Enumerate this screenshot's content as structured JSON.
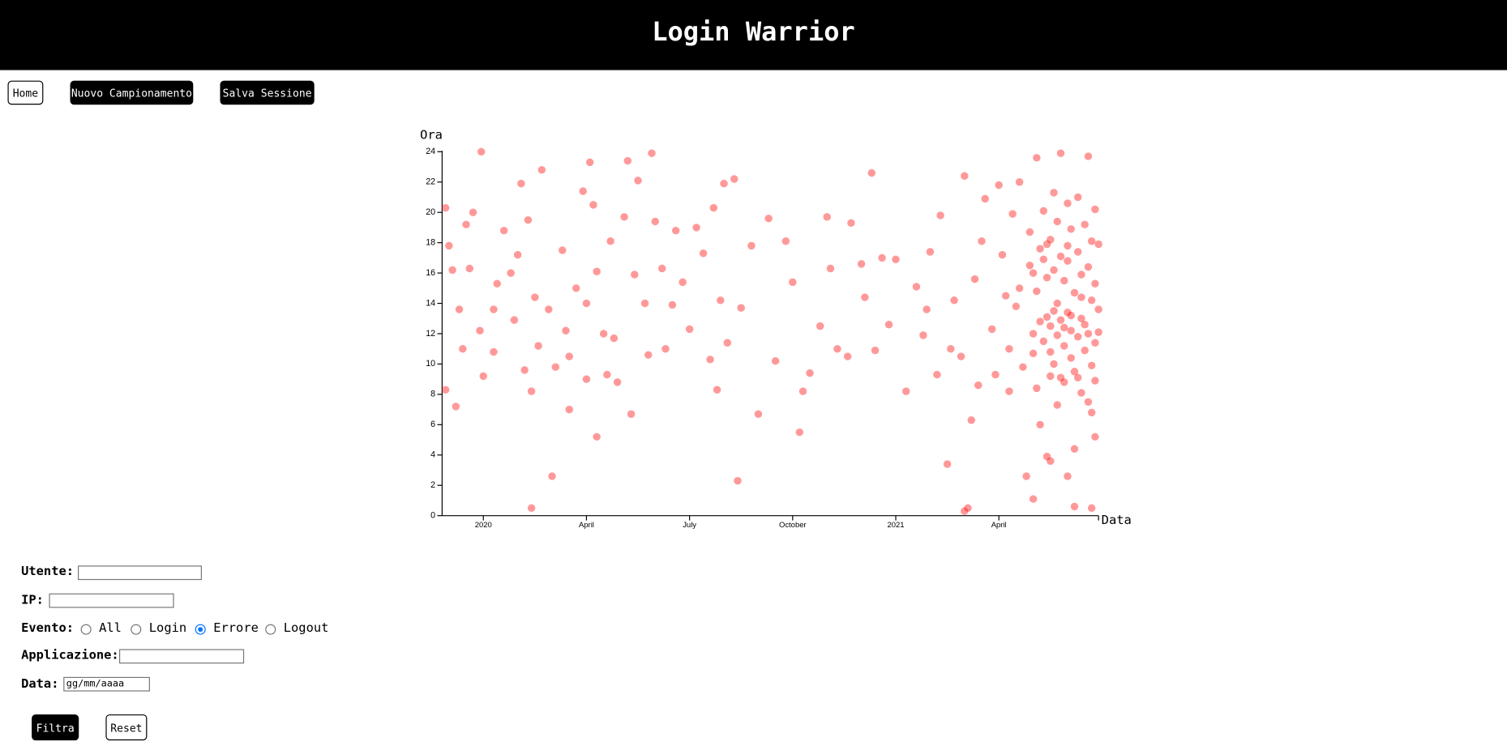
{
  "header": {
    "title": "Login Warrior"
  },
  "nav": {
    "buttons": [
      "Home",
      "Nuovo Campionamento",
      "Salva Sessione"
    ]
  },
  "chart_data": {
    "type": "scatter",
    "xlabel": "Data",
    "ylabel": "Ora",
    "color": "#ff0000",
    "xlim": [
      -1.2,
      17.9
    ],
    "ylim": [
      0,
      24
    ],
    "xticks": [
      {
        "value": 0,
        "label": "2020"
      },
      {
        "value": 3,
        "label": "April"
      },
      {
        "value": 6,
        "label": "July"
      },
      {
        "value": 9,
        "label": "October"
      },
      {
        "value": 12,
        "label": "2021"
      },
      {
        "value": 15,
        "label": "April"
      }
    ],
    "yticks": [
      0,
      2,
      4,
      6,
      8,
      10,
      12,
      14,
      16,
      18,
      20,
      22,
      24
    ],
    "x": [
      -1.1,
      -1.1,
      -1.0,
      -0.9,
      -0.8,
      -0.7,
      -0.6,
      -0.5,
      -0.4,
      -0.3,
      -0.1,
      0.0,
      0.3,
      -0.06,
      0.3,
      0.4,
      0.6,
      0.8,
      0.9,
      1.0,
      1.1,
      1.2,
      1.3,
      1.4,
      1.4,
      1.5,
      1.6,
      1.7,
      1.9,
      2.0,
      2.1,
      2.3,
      2.4,
      2.5,
      2.5,
      2.7,
      2.9,
      3.0,
      3.0,
      3.1,
      3.2,
      3.3,
      3.3,
      3.5,
      3.6,
      3.7,
      3.8,
      3.9,
      4.1,
      4.2,
      4.3,
      4.4,
      4.5,
      4.7,
      4.8,
      4.9,
      5.0,
      5.2,
      5.3,
      5.5,
      5.6,
      5.8,
      6.0,
      6.2,
      6.4,
      6.6,
      6.7,
      6.8,
      6.9,
      7.0,
      7.1,
      7.3,
      7.4,
      7.5,
      7.8,
      8.0,
      8.3,
      8.5,
      8.8,
      9.0,
      9.2,
      9.3,
      9.5,
      9.8,
      10.0,
      10.1,
      10.3,
      10.6,
      10.7,
      11.0,
      11.1,
      11.3,
      11.4,
      11.6,
      11.8,
      12.0,
      12.3,
      12.6,
      12.8,
      12.9,
      13.0,
      13.2,
      13.3,
      13.5,
      13.6,
      13.7,
      13.9,
      14.0,
      14.0,
      14.1,
      14.2,
      14.3,
      14.4,
      14.5,
      14.6,
      14.8,
      14.9,
      15.0,
      15.1,
      15.2,
      15.3,
      15.4,
      15.5,
      15.6,
      15.7,
      15.8,
      15.9,
      15.9,
      16.0,
      16.0,
      16.0,
      16.1,
      16.1,
      16.1,
      16.2,
      16.2,
      16.3,
      16.3,
      16.4,
      16.4,
      16.4,
      16.5,
      16.5,
      16.5,
      16.6,
      16.6,
      16.6,
      16.7,
      16.7,
      16.7,
      16.8,
      16.8,
      16.8,
      16.9,
      16.9,
      16.9,
      17.0,
      17.0,
      17.0,
      17.0,
      17.1,
      17.1,
      17.1,
      17.2,
      17.2,
      17.2,
      17.3,
      17.3,
      17.3,
      17.4,
      17.4,
      17.4,
      17.5,
      17.5,
      17.5,
      17.6,
      17.6,
      17.6,
      17.7,
      17.7,
      17.7,
      17.7,
      17.8,
      17.8,
      17.8,
      17.8,
      17.9,
      17.9,
      17.9,
      16.2,
      16.3,
      16.6,
      16.9,
      17.1,
      17.3,
      16.5,
      16.7,
      16.0,
      17.6,
      17.4,
      17.0,
      16.8,
      16.4,
      15.6,
      15.3,
      17.2,
      16.5,
      17.8,
      17.7
    ],
    "values": [
      20.3,
      8.3,
      17.8,
      16.2,
      7.2,
      13.6,
      11.0,
      19.2,
      16.3,
      20.0,
      12.2,
      9.2,
      10.8,
      24.0,
      13.6,
      15.3,
      18.8,
      16.0,
      12.9,
      17.2,
      21.9,
      9.6,
      19.5,
      8.2,
      0.5,
      14.4,
      11.2,
      22.8,
      13.6,
      2.6,
      9.8,
      17.5,
      12.2,
      10.5,
      7.0,
      15.0,
      21.4,
      14.0,
      9.0,
      23.3,
      20.5,
      16.1,
      5.2,
      12.0,
      9.3,
      18.1,
      11.7,
      8.8,
      19.7,
      23.4,
      6.7,
      15.9,
      22.1,
      14.0,
      10.6,
      23.9,
      19.4,
      16.3,
      11.0,
      13.9,
      18.8,
      15.4,
      12.3,
      19.0,
      17.3,
      10.3,
      20.3,
      8.3,
      14.2,
      21.9,
      11.4,
      22.2,
      2.3,
      13.7,
      17.8,
      6.7,
      19.6,
      10.2,
      18.1,
      15.4,
      5.5,
      8.2,
      9.4,
      12.5,
      19.7,
      16.3,
      11.0,
      10.5,
      19.3,
      16.6,
      14.4,
      22.6,
      10.9,
      17.0,
      12.6,
      16.9,
      8.2,
      15.1,
      11.9,
      13.6,
      17.4,
      9.3,
      19.8,
      3.4,
      11.0,
      14.2,
      10.5,
      22.4,
      0.3,
      0.5,
      6.3,
      15.6,
      8.6,
      18.1,
      20.9,
      12.3,
      9.3,
      21.8,
      17.2,
      14.5,
      11.0,
      19.9,
      13.8,
      22.0,
      9.8,
      2.6,
      16.5,
      18.7,
      12.0,
      1.1,
      10.7,
      23.6,
      14.8,
      8.4,
      17.6,
      6.0,
      11.5,
      20.1,
      13.1,
      3.9,
      15.7,
      9.2,
      18.2,
      12.5,
      21.3,
      16.2,
      10.0,
      14.0,
      7.3,
      19.4,
      12.9,
      17.1,
      23.9,
      11.2,
      15.5,
      8.8,
      13.4,
      20.6,
      2.6,
      16.8,
      10.4,
      18.9,
      12.2,
      14.7,
      9.5,
      0.6,
      17.4,
      11.8,
      21.0,
      13.0,
      8.1,
      15.9,
      19.2,
      10.9,
      12.6,
      16.4,
      23.7,
      7.5,
      14.2,
      9.9,
      18.1,
      0.5,
      11.4,
      15.3,
      20.2,
      8.9,
      13.6,
      17.9,
      12.1,
      12.8,
      16.9,
      13.5,
      12.4,
      13.2,
      9.1,
      10.8,
      11.9,
      16.0,
      12.0,
      14.4,
      17.8,
      9.1,
      17.9,
      15.0,
      8.2,
      4.4,
      3.6,
      5.2,
      6.8
    ]
  },
  "form": {
    "labels": [
      "Utente:",
      "IP:",
      "Evento:",
      "Applicazione:",
      "Data:"
    ],
    "event_options": [
      "All",
      "Login",
      "Errore",
      "Logout"
    ],
    "checked_event": 2,
    "date_placeholder": "gg/mm/aaaa",
    "buttons": [
      "Filtra",
      "Reset"
    ]
  }
}
